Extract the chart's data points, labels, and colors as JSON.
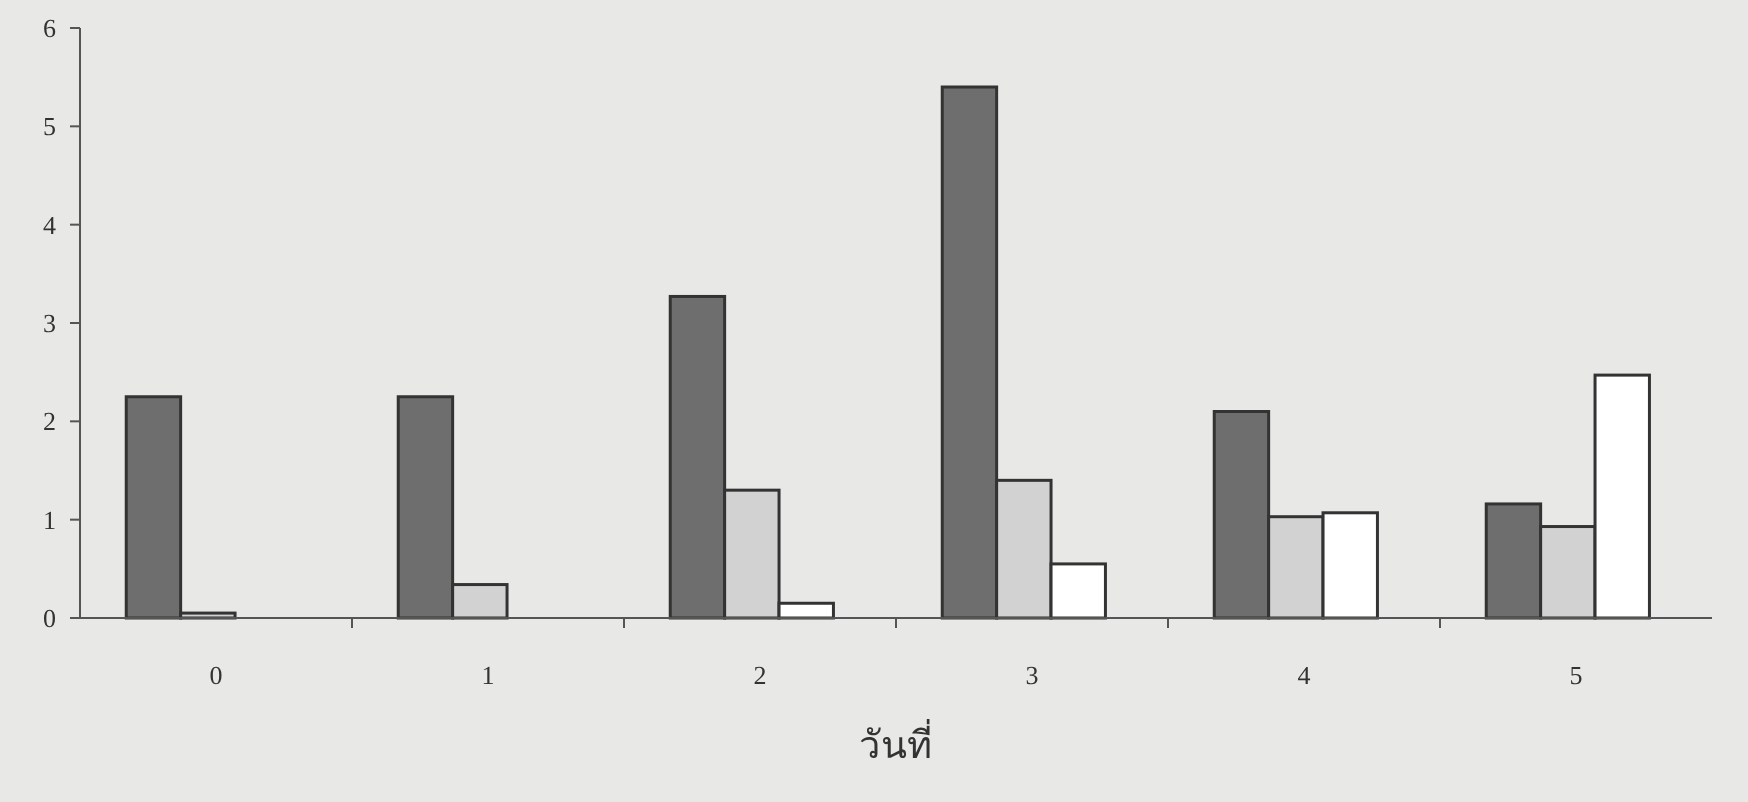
{
  "chart_data": {
    "type": "bar",
    "xlabel": "วันที่",
    "categories": [
      "0",
      "1",
      "2",
      "3",
      "4",
      "5"
    ],
    "series": [
      {
        "color": "#6e6e6e",
        "values": [
          2.25,
          2.25,
          3.27,
          5.4,
          2.1,
          1.16
        ]
      },
      {
        "color": "#d2d2d2",
        "values": [
          0.05,
          0.34,
          1.3,
          1.4,
          1.03,
          0.93
        ]
      },
      {
        "color": "#ffffff",
        "values": [
          0,
          0,
          0.15,
          0.55,
          1.07,
          2.47
        ]
      }
    ],
    "ylim": [
      0,
      6
    ],
    "yticks": [
      0,
      1,
      2,
      3,
      4,
      5,
      6
    ],
    "grid": false
  }
}
